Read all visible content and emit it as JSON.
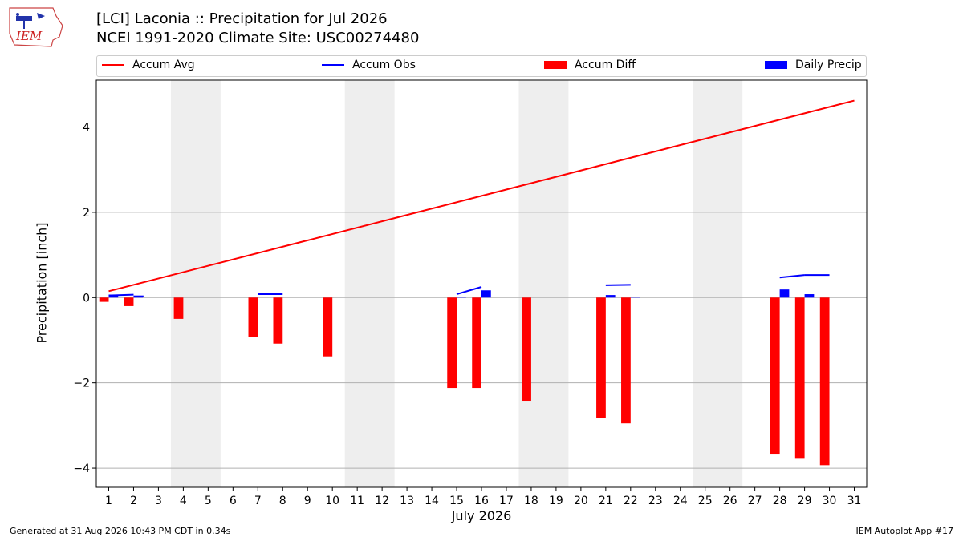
{
  "header": {
    "title_line1": "[LCI] Laconia :: Precipitation for Jul 2026",
    "title_line2": "NCEI 1991-2020 Climate Site: USC00274480",
    "logo_text": "IEM"
  },
  "legend": {
    "items": [
      {
        "label": "Accum Avg",
        "color": "#ff0000",
        "kind": "line"
      },
      {
        "label": "Accum Obs",
        "color": "#0000ff",
        "kind": "line"
      },
      {
        "label": "Accum Diff",
        "color": "#ff0000",
        "kind": "bar"
      },
      {
        "label": "Daily Precip",
        "color": "#0000ff",
        "kind": "bar"
      }
    ]
  },
  "footer": {
    "generated": "Generated at 31 Aug 2026 10:43 PM CDT in 0.34s",
    "app": "IEM Autoplot App #17"
  },
  "chart_data": {
    "type": "bar",
    "title": "[LCI] Laconia :: Precipitation for Jul 2026",
    "xlabel": "July 2026",
    "ylabel": "Precipitation [inch]",
    "xlim": [
      0.5,
      31.5
    ],
    "ylim": [
      -4.45,
      5.1
    ],
    "yticks": [
      -4,
      -2,
      0,
      2,
      4
    ],
    "ytick_labels": [
      "−4",
      "−2",
      "0",
      "2",
      "4"
    ],
    "xticks": [
      1,
      2,
      3,
      4,
      5,
      6,
      7,
      8,
      9,
      10,
      11,
      12,
      13,
      14,
      15,
      16,
      17,
      18,
      19,
      20,
      21,
      22,
      23,
      24,
      25,
      26,
      27,
      28,
      29,
      30,
      31
    ],
    "grid": "horizontal",
    "legend_position": "top",
    "weekend_shading": [
      [
        3.5,
        5.5
      ],
      [
        10.5,
        12.5
      ],
      [
        17.5,
        19.5
      ],
      [
        24.5,
        26.5
      ]
    ],
    "accum_avg": {
      "name": "Accum Avg",
      "x": [
        1,
        31
      ],
      "values": [
        0.15,
        4.62
      ],
      "color": "#ff0000"
    },
    "accum_obs": {
      "name": "Accum Obs",
      "color": "#0000ff",
      "segments": [
        {
          "x": [
            1,
            2
          ],
          "values": [
            0.05,
            0.07
          ]
        },
        {
          "x": [
            2,
            2.4
          ],
          "values": [
            0.03,
            0.03
          ]
        },
        {
          "x": [
            7,
            8
          ],
          "values": [
            0.08,
            0.08
          ]
        },
        {
          "x": [
            15,
            16
          ],
          "values": [
            0.08,
            0.25
          ]
        },
        {
          "x": [
            21,
            22
          ],
          "values": [
            0.29,
            0.3
          ]
        },
        {
          "x": [
            28,
            29
          ],
          "values": [
            0.47,
            0.53
          ]
        },
        {
          "x": [
            29,
            30
          ],
          "values": [
            0.53,
            0.53
          ]
        }
      ]
    },
    "accum_diff": {
      "name": "Accum Diff",
      "color": "#ff0000",
      "x": [
        1,
        2,
        4,
        7,
        8,
        10,
        15,
        16,
        18,
        21,
        22,
        28,
        29,
        30
      ],
      "values": [
        -0.1,
        -0.2,
        -0.5,
        -0.93,
        -1.08,
        -1.38,
        -2.12,
        -2.12,
        -2.42,
        -2.82,
        -2.95,
        -3.68,
        -3.78,
        -3.93
      ]
    },
    "daily_precip": {
      "name": "Daily Precip",
      "color": "#0000ff",
      "x": [
        1,
        2,
        15,
        16,
        21,
        22,
        28,
        29
      ],
      "values": [
        0.07,
        0.03,
        0.02,
        0.17,
        0.06,
        0.02,
        0.19,
        0.08
      ]
    }
  }
}
